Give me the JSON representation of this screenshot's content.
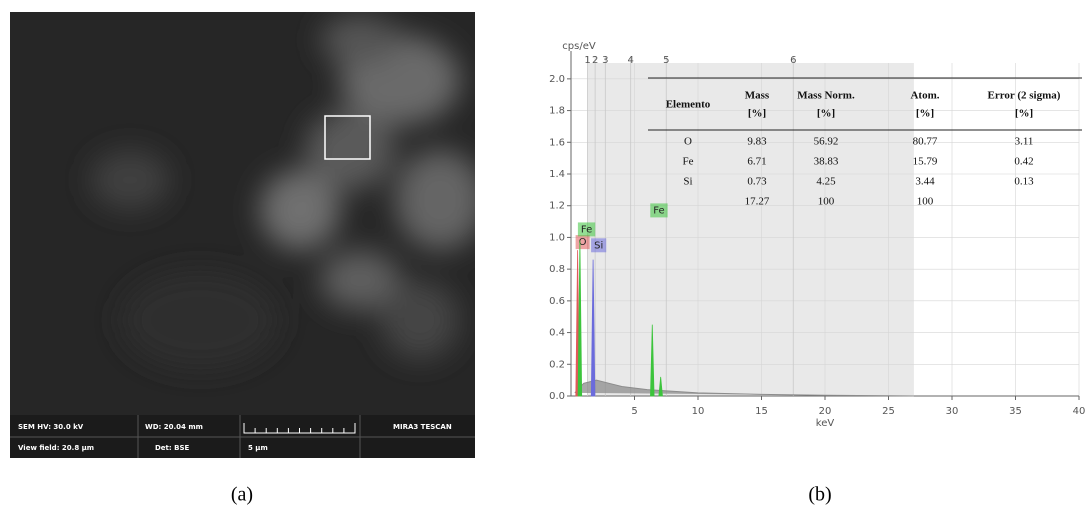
{
  "panel_a": {
    "label": "(a)",
    "sem_hv": "SEM HV: 30.0 kV",
    "wd": "WD: 20.04 mm",
    "brand": "MIRA3 TESCAN",
    "view_field": "View field: 20.8 µm",
    "det": "Det: BSE",
    "scale": "5 µm"
  },
  "panel_b": {
    "label": "(b)",
    "table": {
      "header": [
        [
          "Elemento"
        ],
        [
          "Mass",
          "[%]"
        ],
        [
          "Mass Norm.",
          "[%]"
        ],
        [
          "Atom.",
          "[%]"
        ],
        [
          "Error (2 sigma)",
          "[%]"
        ]
      ],
      "rows": [
        [
          "O",
          "9.83",
          "56.92",
          "80.77",
          "3.11"
        ],
        [
          "Fe",
          "6.71",
          "38.83",
          "15.79",
          "0.42"
        ],
        [
          "Si",
          "0.73",
          "4.25",
          "3.44",
          "0.13"
        ]
      ],
      "totals": [
        "17.27",
        "100",
        "100"
      ]
    }
  },
  "chart_data": {
    "type": "spectrum",
    "y_label": "cps/eV",
    "x_label": "keV",
    "xlim": [
      0,
      40
    ],
    "ylim": [
      0,
      2.1
    ],
    "xticks": [
      5,
      10,
      15,
      20,
      25,
      30,
      35,
      40
    ],
    "yticks": [
      {
        "value": 0,
        "label": "0.0"
      },
      0.2,
      0.4,
      0.6,
      0.8,
      {
        "value": 1,
        "label": "1.0"
      },
      1.2,
      1.4,
      1.6,
      1.8,
      {
        "value": 2,
        "label": "2.0"
      }
    ],
    "grid": true,
    "top_marks": {
      "labels": [
        "1",
        "2",
        "3",
        "4",
        "5",
        "6"
      ],
      "x": [
        1.3,
        1.9,
        2.7,
        4.7,
        7.5,
        17.5
      ]
    },
    "highlight_range": [
      1.3,
      27
    ],
    "background": {
      "color": "#8c8c8c",
      "x": [
        0.3,
        1,
        2,
        3,
        4,
        6,
        10,
        15,
        20,
        27
      ],
      "values": [
        0.02,
        0.08,
        0.1,
        0.08,
        0.06,
        0.04,
        0.02,
        0.01,
        0.005,
        0
      ]
    },
    "series": [
      {
        "name": "O",
        "color": "#e05a5a",
        "x": [
          0.52
        ],
        "values": [
          0.92
        ]
      },
      {
        "name": "Fe",
        "color": "#3cc43c",
        "x": [
          0.7,
          6.4,
          7.06
        ],
        "values": [
          0.98,
          0.45,
          0.12
        ]
      },
      {
        "name": "Si",
        "color": "#6b6bdc",
        "x": [
          1.74
        ],
        "values": [
          0.86
        ]
      }
    ]
  }
}
